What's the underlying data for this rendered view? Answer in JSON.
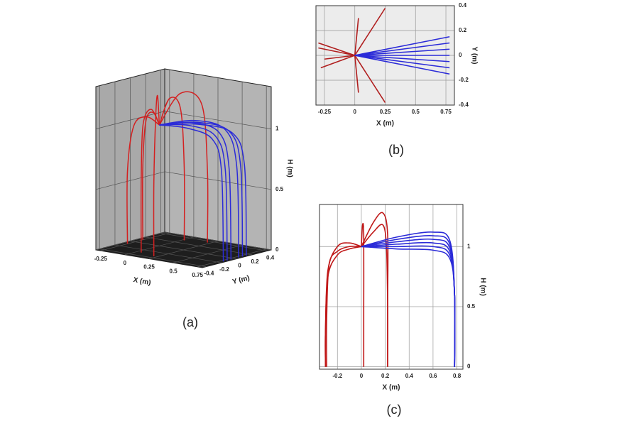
{
  "chart_data": [
    {
      "type": "line3d",
      "caption": "(a)",
      "xlabel": "X (m)",
      "ylabel": "Y (m)",
      "zlabel": "H (m)",
      "xlim": [
        -0.3,
        0.8
      ],
      "ylim": [
        -0.45,
        0.45
      ],
      "zlim": [
        0,
        1.35
      ],
      "xticks": [
        -0.25,
        0,
        0.25,
        0.5,
        0.75
      ],
      "yticks": [
        -0.4,
        -0.2,
        0,
        0.2,
        0.4
      ],
      "zticks": [
        0,
        0.5,
        1
      ],
      "series": [
        {
          "color": "#d42020",
          "x": [
            0,
            -0.1,
            -0.2,
            -0.25,
            -0.25
          ],
          "y": [
            0,
            0.05,
            0.08,
            0.1,
            0.1
          ],
          "z": [
            1,
            1.08,
            1.0,
            0.6,
            0
          ]
        },
        {
          "color": "#d42020",
          "x": [
            0,
            -0.1,
            -0.2,
            -0.25,
            -0.25
          ],
          "y": [
            0,
            -0.04,
            -0.08,
            -0.1,
            -0.1
          ],
          "z": [
            1,
            1.06,
            0.98,
            0.6,
            0
          ]
        },
        {
          "color": "#d42020",
          "x": [
            0,
            0.01,
            0.02,
            0.02,
            0.02
          ],
          "y": [
            0,
            0.12,
            0.25,
            0.3,
            0.3
          ],
          "z": [
            1,
            1.2,
            1.1,
            0.6,
            0
          ]
        },
        {
          "color": "#d42020",
          "x": [
            0,
            0.01,
            0.03,
            0.05,
            0.05
          ],
          "y": [
            0,
            -0.12,
            -0.25,
            -0.3,
            -0.3
          ],
          "z": [
            1,
            1.15,
            1.05,
            0.6,
            0
          ]
        },
        {
          "color": "#d42020",
          "x": [
            0,
            0.1,
            0.2,
            0.22,
            0.22
          ],
          "y": [
            0,
            0.15,
            0.3,
            0.35,
            0.35
          ],
          "z": [
            1,
            1.25,
            1.15,
            0.6,
            0
          ]
        },
        {
          "color": "#d42020",
          "x": [
            0,
            0.1,
            0.2,
            0.22,
            0.22
          ],
          "y": [
            0,
            -0.15,
            -0.3,
            -0.35,
            -0.35
          ],
          "z": [
            1,
            1.28,
            1.15,
            0.6,
            0
          ]
        },
        {
          "color": "#2b2bd8",
          "x": [
            0,
            0.35,
            0.65,
            0.76,
            0.78
          ],
          "y": [
            0,
            0.07,
            0.13,
            0.15,
            0.15
          ],
          "z": [
            1,
            1.04,
            1.0,
            0.75,
            0
          ]
        },
        {
          "color": "#2b2bd8",
          "x": [
            0,
            0.35,
            0.65,
            0.76,
            0.78
          ],
          "y": [
            0,
            0.05,
            0.09,
            0.1,
            0.1
          ],
          "z": [
            1,
            1.06,
            1.02,
            0.75,
            0
          ]
        },
        {
          "color": "#2b2bd8",
          "x": [
            0,
            0.35,
            0.65,
            0.76,
            0.78
          ],
          "y": [
            0,
            0.02,
            0.04,
            0.05,
            0.05
          ],
          "z": [
            1,
            1.08,
            1.04,
            0.75,
            0
          ]
        },
        {
          "color": "#2b2bd8",
          "x": [
            0,
            0.35,
            0.65,
            0.76,
            0.78
          ],
          "y": [
            0,
            -0.02,
            -0.04,
            -0.05,
            -0.05
          ],
          "z": [
            1,
            1.07,
            1.03,
            0.75,
            0
          ]
        },
        {
          "color": "#2b2bd8",
          "x": [
            0,
            0.35,
            0.65,
            0.76,
            0.78
          ],
          "y": [
            0,
            -0.05,
            -0.09,
            -0.1,
            -0.1
          ],
          "z": [
            1,
            1.05,
            1.01,
            0.75,
            0
          ]
        },
        {
          "color": "#2b2bd8",
          "x": [
            0,
            0.35,
            0.65,
            0.76,
            0.78
          ],
          "y": [
            0,
            -0.07,
            -0.13,
            -0.15,
            -0.15
          ],
          "z": [
            1,
            1.03,
            0.99,
            0.75,
            0
          ]
        }
      ]
    },
    {
      "type": "line",
      "caption": "(b)",
      "xlabel": "X (m)",
      "ylabel": "Y (m)",
      "background": "#ececec",
      "xlim": [
        -0.32,
        0.82
      ],
      "ylim": [
        -0.4,
        0.4
      ],
      "xticks": [
        -0.25,
        0,
        0.25,
        0.5,
        0.75
      ],
      "yticks": [
        -0.4,
        -0.2,
        0,
        0.2,
        0.4
      ],
      "series": [
        {
          "color": "#b01e1e",
          "x": [
            0,
            -0.3
          ],
          "values": [
            0,
            0.1
          ]
        },
        {
          "color": "#b01e1e",
          "x": [
            0,
            -0.3
          ],
          "values": [
            0,
            0.06
          ]
        },
        {
          "color": "#b01e1e",
          "x": [
            0,
            -0.28
          ],
          "values": [
            0,
            -0.1
          ]
        },
        {
          "color": "#b01e1e",
          "x": [
            0,
            -0.25
          ],
          "values": [
            0,
            -0.03
          ]
        },
        {
          "color": "#b01e1e",
          "x": [
            0,
            0.03
          ],
          "values": [
            0,
            0.3
          ]
        },
        {
          "color": "#b01e1e",
          "x": [
            0,
            0.03
          ],
          "values": [
            0,
            -0.3
          ]
        },
        {
          "color": "#b01e1e",
          "x": [
            0,
            0.25
          ],
          "values": [
            0,
            0.38
          ]
        },
        {
          "color": "#b01e1e",
          "x": [
            0,
            0.25
          ],
          "values": [
            0,
            -0.38
          ]
        },
        {
          "color": "#2b2bd8",
          "x": [
            0,
            0.78
          ],
          "values": [
            0,
            0.15
          ]
        },
        {
          "color": "#2b2bd8",
          "x": [
            0,
            0.78
          ],
          "values": [
            0,
            0.1
          ]
        },
        {
          "color": "#2b2bd8",
          "x": [
            0,
            0.78
          ],
          "values": [
            0,
            0.05
          ]
        },
        {
          "color": "#2b2bd8",
          "x": [
            0,
            0.78
          ],
          "values": [
            0,
            0
          ]
        },
        {
          "color": "#2b2bd8",
          "x": [
            0,
            0.78
          ],
          "values": [
            0,
            -0.05
          ]
        },
        {
          "color": "#2b2bd8",
          "x": [
            0,
            0.78
          ],
          "values": [
            0,
            -0.1
          ]
        },
        {
          "color": "#2b2bd8",
          "x": [
            0,
            0.78
          ],
          "values": [
            0,
            -0.15
          ]
        }
      ]
    },
    {
      "type": "line",
      "caption": "(c)",
      "xlabel": "X (m)",
      "ylabel": "H (m)",
      "background": "#ffffff",
      "xlim": [
        -0.35,
        0.85
      ],
      "ylim": [
        -0.02,
        1.35
      ],
      "xticks": [
        -0.2,
        0,
        0.2,
        0.4,
        0.6,
        0.8
      ],
      "yticks": [
        0,
        0.5,
        1
      ],
      "series": [
        {
          "color": "#c01818",
          "x": [
            0,
            -0.1,
            -0.2,
            -0.28,
            -0.3,
            -0.3
          ],
          "values": [
            1,
            1.03,
            1.0,
            0.8,
            0.3,
            0
          ]
        },
        {
          "color": "#c01818",
          "x": [
            0,
            -0.1,
            -0.2,
            -0.28,
            -0.3,
            -0.3
          ],
          "values": [
            1,
            0.98,
            0.93,
            0.75,
            0.3,
            0
          ]
        },
        {
          "color": "#c01818",
          "x": [
            0,
            -0.1,
            -0.2,
            -0.27,
            -0.29,
            -0.29
          ],
          "values": [
            1,
            1.0,
            0.96,
            0.85,
            0.4,
            0
          ]
        },
        {
          "color": "#c01818",
          "x": [
            0,
            0.01,
            0.02,
            0.02,
            0.02
          ],
          "values": [
            1,
            1.18,
            1.1,
            0.5,
            0
          ]
        },
        {
          "color": "#c01818",
          "x": [
            0,
            0.1,
            0.18,
            0.22,
            0.22,
            0.22
          ],
          "values": [
            1,
            1.2,
            1.28,
            1.1,
            0.5,
            0
          ]
        },
        {
          "color": "#c01818",
          "x": [
            0,
            0.1,
            0.18,
            0.21,
            0.22,
            0.22
          ],
          "values": [
            1,
            1.12,
            1.18,
            1.0,
            0.5,
            0
          ]
        },
        {
          "color": "#2b2bd8",
          "x": [
            0,
            0.3,
            0.6,
            0.74,
            0.78,
            0.78
          ],
          "values": [
            1,
            1.08,
            1.12,
            1.05,
            0.6,
            0
          ]
        },
        {
          "color": "#2b2bd8",
          "x": [
            0,
            0.3,
            0.6,
            0.74,
            0.78,
            0.78
          ],
          "values": [
            1,
            1.06,
            1.09,
            1.02,
            0.6,
            0
          ]
        },
        {
          "color": "#2b2bd8",
          "x": [
            0,
            0.3,
            0.6,
            0.74,
            0.78,
            0.78
          ],
          "values": [
            1,
            1.04,
            1.06,
            0.99,
            0.6,
            0
          ]
        },
        {
          "color": "#2b2bd8",
          "x": [
            0,
            0.3,
            0.6,
            0.74,
            0.78,
            0.78
          ],
          "values": [
            1,
            1.02,
            1.03,
            0.96,
            0.6,
            0
          ]
        },
        {
          "color": "#2b2bd8",
          "x": [
            0,
            0.3,
            0.6,
            0.74,
            0.78,
            0.78
          ],
          "values": [
            1,
            1.0,
            1.0,
            0.93,
            0.6,
            0
          ]
        },
        {
          "color": "#2b2bd8",
          "x": [
            0,
            0.3,
            0.6,
            0.74,
            0.78,
            0.78
          ],
          "values": [
            1,
            0.98,
            0.97,
            0.9,
            0.6,
            0
          ]
        }
      ]
    }
  ]
}
